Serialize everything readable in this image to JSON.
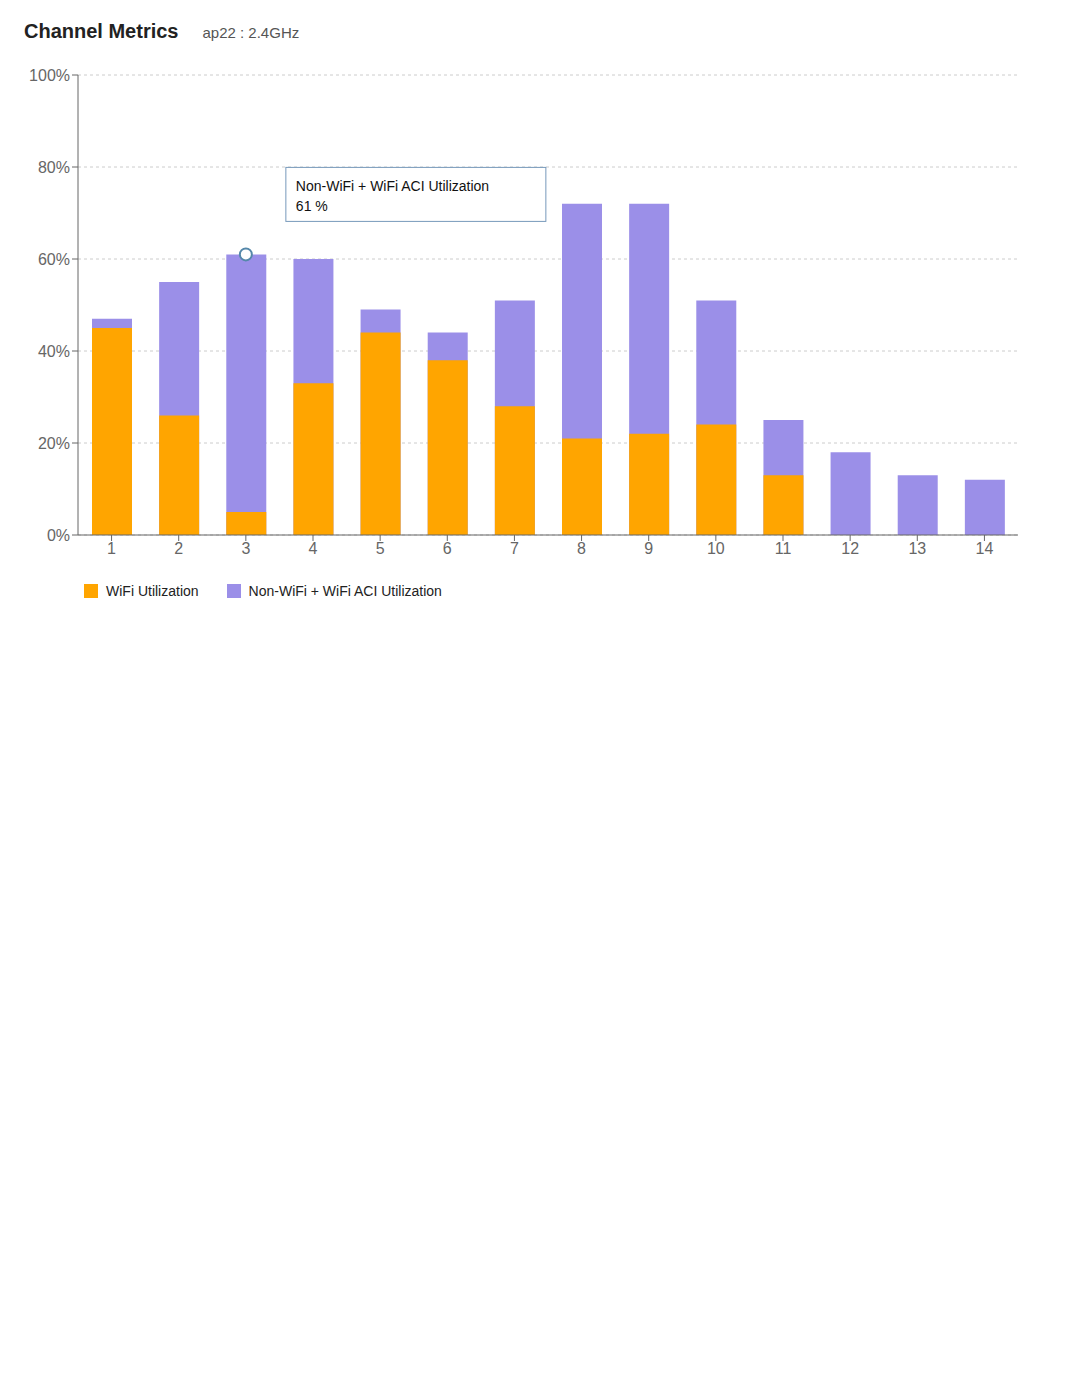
{
  "chart_data": {
    "type": "bar",
    "title": "Channel Metrics",
    "subtitle": "ap22 : 2.4GHz",
    "categories": [
      "1",
      "2",
      "3",
      "4",
      "5",
      "6",
      "7",
      "8",
      "9",
      "10",
      "11",
      "12",
      "13",
      "14"
    ],
    "series": [
      {
        "name": "WiFi Utilization",
        "color": "#FFA500",
        "values": [
          45,
          26,
          5,
          33,
          44,
          38,
          28,
          21,
          22,
          24,
          13,
          0,
          0,
          0
        ]
      },
      {
        "name": "Non-WiFi + WiFi ACI Utilization",
        "color": "#9B8FE8",
        "values": [
          47,
          55,
          61,
          60,
          49,
          44,
          51,
          72,
          72,
          51,
          25,
          18,
          13,
          12
        ]
      }
    ],
    "ylim": [
      0,
      100
    ],
    "yticks": [
      {
        "value": 0,
        "label": "0%"
      },
      {
        "value": 20,
        "label": "20%"
      },
      {
        "value": 40,
        "label": "40%"
      },
      {
        "value": 60,
        "label": "60%"
      },
      {
        "value": 80,
        "label": "80%"
      },
      {
        "value": 100,
        "label": "100%"
      }
    ],
    "grid": true,
    "annotations": [
      {
        "text": "Non-WiFi + WiFi ACI Utilization\n61 %",
        "x": "3",
        "y": 61
      }
    ]
  }
}
